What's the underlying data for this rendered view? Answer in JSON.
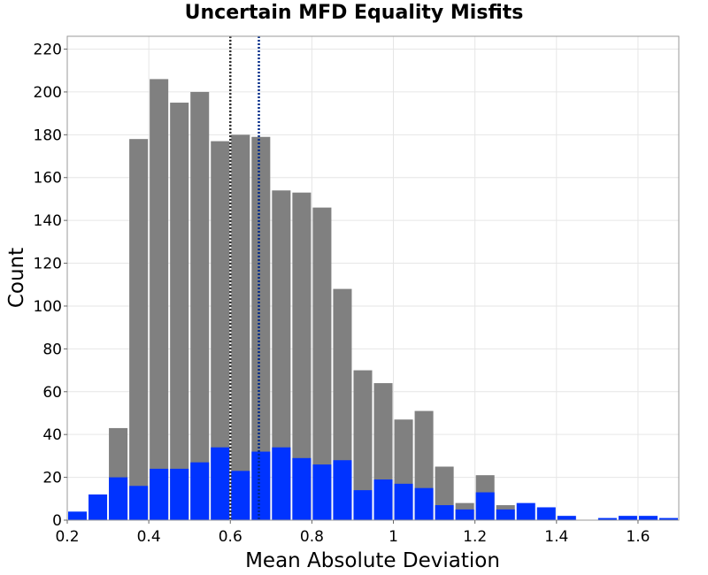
{
  "chart_data": {
    "type": "bar",
    "title": "Uncertain MFD Equality Misfits",
    "xlabel": "Mean Absolute Deviation",
    "ylabel": "Count",
    "xlim": [
      0.2,
      1.7
    ],
    "ylim": [
      0,
      226
    ],
    "bin_width": 0.05,
    "x_ticks": [
      0.2,
      0.4,
      0.6,
      0.8,
      1.0,
      1.2,
      1.4,
      1.6
    ],
    "x_tick_labels": [
      "0.2",
      "0.4",
      "0.6",
      "0.8",
      "1",
      "1.2",
      "1.4",
      "1.6"
    ],
    "y_ticks": [
      0,
      20,
      40,
      60,
      80,
      100,
      120,
      140,
      160,
      180,
      200,
      220
    ],
    "y_tick_labels": [
      "0",
      "20",
      "40",
      "60",
      "80",
      "100",
      "120",
      "140",
      "160",
      "180",
      "200",
      "220"
    ],
    "grid": true,
    "series": [
      {
        "color": "#808080",
        "x": [
          0.2,
          0.25,
          0.3,
          0.35,
          0.4,
          0.45,
          0.5,
          0.55,
          0.6,
          0.65,
          0.7,
          0.75,
          0.8,
          0.85,
          0.9,
          0.95,
          1.0,
          1.05,
          1.1,
          1.15,
          1.2,
          1.25,
          1.3,
          1.35,
          1.4,
          1.45,
          1.5,
          1.55,
          1.6,
          1.65
        ],
        "values": [
          0,
          0,
          43,
          178,
          206,
          195,
          200,
          177,
          180,
          179,
          154,
          153,
          146,
          108,
          70,
          64,
          47,
          51,
          25,
          8,
          21,
          7,
          0,
          0,
          0,
          0,
          0,
          0,
          0,
          0
        ]
      },
      {
        "color": "#0033ff",
        "x": [
          0.2,
          0.25,
          0.3,
          0.35,
          0.4,
          0.45,
          0.5,
          0.55,
          0.6,
          0.65,
          0.7,
          0.75,
          0.8,
          0.85,
          0.9,
          0.95,
          1.0,
          1.05,
          1.1,
          1.15,
          1.2,
          1.25,
          1.3,
          1.35,
          1.4,
          1.45,
          1.5,
          1.55,
          1.6,
          1.65
        ],
        "values": [
          4,
          12,
          20,
          16,
          24,
          24,
          27,
          34,
          23,
          32,
          34,
          29,
          26,
          28,
          14,
          19,
          17,
          15,
          7,
          5,
          13,
          5,
          8,
          6,
          2,
          0,
          1,
          2,
          2,
          1
        ]
      }
    ],
    "vertical_lines": [
      {
        "x": 0.6,
        "color": "#333333"
      },
      {
        "x": 0.67,
        "color": "#002a88"
      }
    ]
  }
}
